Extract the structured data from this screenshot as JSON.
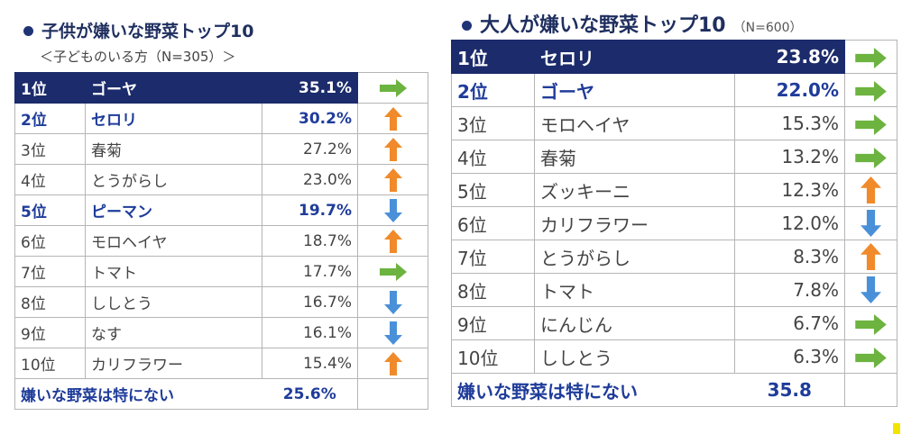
{
  "colors": {
    "header_bg": "#1b2b6b",
    "highlight_text": "#1f3c9a",
    "arrow_up": "#f08a2a",
    "arrow_down": "#4a90d9",
    "arrow_same": "#6cb33f"
  },
  "chart_data": [
    {
      "type": "table",
      "title": "子供が嫌いな野菜トップ10",
      "subtitle": "＜子どものいる方（N=305）＞",
      "rows": [
        {
          "rank": "1位",
          "vegetable": "ゴーヤ",
          "percent": "35.1%",
          "value": 35.1,
          "trend": "same",
          "trend_icon": "arrow-right-icon"
        },
        {
          "rank": "2位",
          "vegetable": "セロリ",
          "percent": "30.2%",
          "value": 30.2,
          "trend": "up",
          "trend_icon": "arrow-up-icon"
        },
        {
          "rank": "3位",
          "vegetable": "春菊",
          "percent": "27.2%",
          "value": 27.2,
          "trend": "up",
          "trend_icon": "arrow-up-icon"
        },
        {
          "rank": "4位",
          "vegetable": "とうがらし",
          "percent": "23.0%",
          "value": 23.0,
          "trend": "up",
          "trend_icon": "arrow-up-icon"
        },
        {
          "rank": "5位",
          "vegetable": "ピーマン",
          "percent": "19.7%",
          "value": 19.7,
          "trend": "down",
          "trend_icon": "arrow-down-icon"
        },
        {
          "rank": "6位",
          "vegetable": "モロヘイヤ",
          "percent": "18.7%",
          "value": 18.7,
          "trend": "up",
          "trend_icon": "arrow-up-icon"
        },
        {
          "rank": "7位",
          "vegetable": "トマト",
          "percent": "17.7%",
          "value": 17.7,
          "trend": "same",
          "trend_icon": "arrow-right-icon"
        },
        {
          "rank": "8位",
          "vegetable": "ししとう",
          "percent": "16.7%",
          "value": 16.7,
          "trend": "down",
          "trend_icon": "arrow-down-icon"
        },
        {
          "rank": "9位",
          "vegetable": "なす",
          "percent": "16.1%",
          "value": 16.1,
          "trend": "down",
          "trend_icon": "arrow-down-icon"
        },
        {
          "rank": "10位",
          "vegetable": "カリフラワー",
          "percent": "15.4%",
          "value": 15.4,
          "trend": "up",
          "trend_icon": "arrow-up-icon"
        }
      ],
      "summary": {
        "label": "嫌いな野菜は特にない",
        "percent": "25.6%",
        "value": 25.6
      }
    },
    {
      "type": "table",
      "title": "大人が嫌いな野菜トップ10",
      "n_note": "（N=600）",
      "rows": [
        {
          "rank": "1位",
          "vegetable": "セロリ",
          "percent": "23.8%",
          "value": 23.8,
          "trend": "same",
          "trend_icon": "arrow-right-icon"
        },
        {
          "rank": "2位",
          "vegetable": "ゴーヤ",
          "percent": "22.0%",
          "value": 22.0,
          "trend": "same",
          "trend_icon": "arrow-right-icon"
        },
        {
          "rank": "3位",
          "vegetable": "モロヘイヤ",
          "percent": "15.3%",
          "value": 15.3,
          "trend": "same",
          "trend_icon": "arrow-right-icon"
        },
        {
          "rank": "4位",
          "vegetable": "春菊",
          "percent": "13.2%",
          "value": 13.2,
          "trend": "same",
          "trend_icon": "arrow-right-icon"
        },
        {
          "rank": "5位",
          "vegetable": "ズッキーニ",
          "percent": "12.3%",
          "value": 12.3,
          "trend": "up",
          "trend_icon": "arrow-up-icon"
        },
        {
          "rank": "6位",
          "vegetable": "カリフラワー",
          "percent": "12.0%",
          "value": 12.0,
          "trend": "down",
          "trend_icon": "arrow-down-icon"
        },
        {
          "rank": "7位",
          "vegetable": "とうがらし",
          "percent": "8.3%",
          "value": 8.3,
          "trend": "up",
          "trend_icon": "arrow-up-icon"
        },
        {
          "rank": "8位",
          "vegetable": "トマト",
          "percent": "7.8%",
          "value": 7.8,
          "trend": "down",
          "trend_icon": "arrow-down-icon"
        },
        {
          "rank": "9位",
          "vegetable": "にんじん",
          "percent": "6.7%",
          "value": 6.7,
          "trend": "same",
          "trend_icon": "arrow-right-icon"
        },
        {
          "rank": "10位",
          "vegetable": "ししとう",
          "percent": "6.3%",
          "value": 6.3,
          "trend": "same",
          "trend_icon": "arrow-right-icon"
        }
      ],
      "summary": {
        "label": "嫌いな野菜は特にない",
        "percent": "35.8",
        "value": 35.8
      }
    }
  ]
}
